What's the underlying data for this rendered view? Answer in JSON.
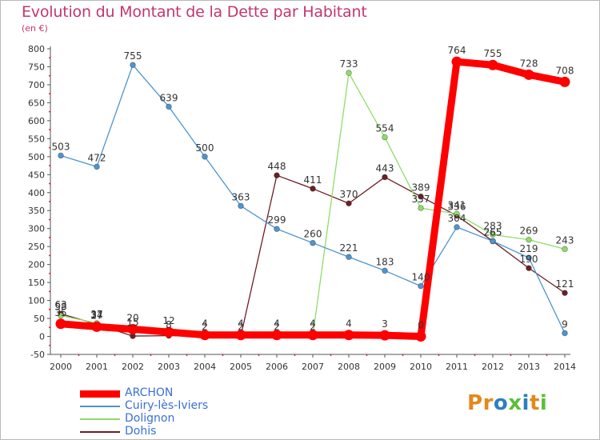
{
  "header": {
    "title": "Evolution du Montant de la Dette par Habitant",
    "subtitle": "(en €)"
  },
  "logo": {
    "text": "Proxiti",
    "colors": [
      "#e2891c",
      "#e2891c",
      "#2b7fc1",
      "#5bbf3a",
      "#2b7fc1",
      "#e2891c",
      "#5bbf3a"
    ]
  },
  "chart_data": {
    "type": "line",
    "x": [
      2000,
      2001,
      2002,
      2003,
      2004,
      2005,
      2006,
      2007,
      2008,
      2009,
      2010,
      2011,
      2012,
      2013,
      2014
    ],
    "ylim": [
      -50,
      800
    ],
    "yticks": [
      -50,
      0,
      50,
      100,
      150,
      200,
      250,
      300,
      350,
      400,
      450,
      500,
      550,
      600,
      650,
      700,
      750,
      800
    ],
    "grid": false,
    "legend_position": "bottom-left",
    "series": [
      {
        "name": "ARCHON",
        "color": "#ff0000",
        "emphasis": true,
        "values": [
          35,
          27,
          20,
          12,
          4,
          4,
          4,
          4,
          4,
          3,
          0,
          764,
          755,
          728,
          708
        ],
        "labels": [
          "35",
          "27",
          "20",
          "12",
          "4",
          "4",
          "4",
          "4",
          "4",
          "3",
          "0",
          "764",
          "755",
          "728",
          "708"
        ]
      },
      {
        "name": "Cuiry-lès-Iviers",
        "color": "#4e94d0",
        "values": [
          503,
          472,
          755,
          639,
          500,
          363,
          299,
          260,
          221,
          183,
          140,
          304,
          265,
          219,
          9
        ],
        "labels": [
          "503",
          "472",
          "755",
          "639",
          "500",
          "363",
          "299",
          "260",
          "221",
          "183",
          "140",
          "304",
          "265",
          "219",
          "9"
        ]
      },
      {
        "name": "Dolignon",
        "color": "#8fdc6a",
        "values": [
          58,
          37,
          15,
          8,
          2,
          2,
          2,
          2,
          733,
          554,
          357,
          341,
          283,
          269,
          243
        ],
        "labels": [
          "58",
          "37",
          "15",
          "8",
          "2",
          "2",
          "2",
          "2",
          "733",
          "554",
          "357",
          "341",
          "283",
          "269",
          "243"
        ]
      },
      {
        "name": "Dohis",
        "color": "#6d1f24",
        "values": [
          63,
          34,
          1,
          2,
          1,
          1,
          448,
          411,
          370,
          443,
          389,
          336,
          265,
          190,
          121
        ],
        "labels": [
          "63",
          "34",
          "",
          "",
          "",
          "",
          "448",
          "411",
          "370",
          "443",
          "389",
          "336",
          "265",
          "190",
          "121"
        ]
      }
    ]
  }
}
